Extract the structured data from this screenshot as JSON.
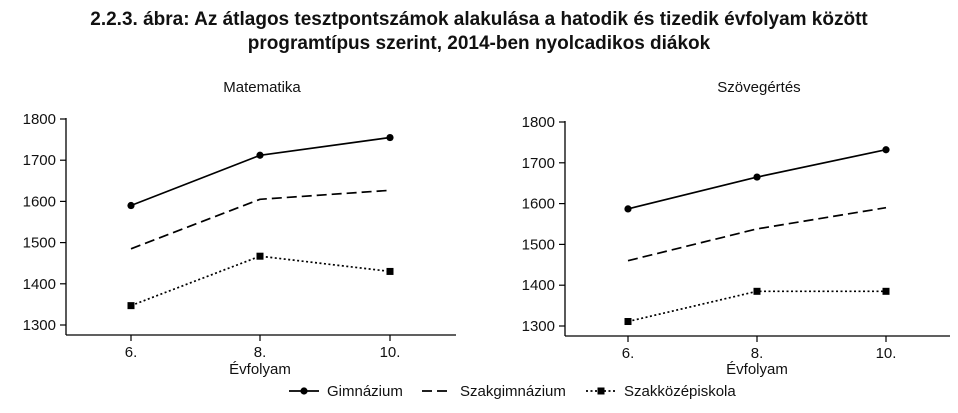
{
  "figure": {
    "title_line1": "2.2.3. ábra: Az átlagos tesztpontszámok alakulása a hatodik és tizedik évfolyam között",
    "title_line2": "programtípus szerint, 2014-ben nyolcadikos diákok"
  },
  "chart_data": [
    {
      "type": "line",
      "title": "Matematika",
      "xlabel": "Évfolyam",
      "ylabel": "",
      "categories": [
        "6.",
        "8.",
        "10."
      ],
      "ylim": [
        1300,
        1800
      ],
      "yticks": [
        1300,
        1400,
        1500,
        1600,
        1700,
        1800
      ],
      "grid": false,
      "legend_position": "bottom",
      "series": [
        {
          "name": "Gimnázium",
          "values": [
            1590,
            1712,
            1755
          ],
          "style": "solid",
          "marker": "circle"
        },
        {
          "name": "Szakgimnázium",
          "values": [
            1485,
            1605,
            1627
          ],
          "style": "dashed",
          "marker": "none"
        },
        {
          "name": "Szakközépiskola",
          "values": [
            1347,
            1467,
            1430
          ],
          "style": "dotted",
          "marker": "square"
        }
      ]
    },
    {
      "type": "line",
      "title": "Szövegértés",
      "xlabel": "Évfolyam",
      "ylabel": "",
      "categories": [
        "6.",
        "8.",
        "10."
      ],
      "ylim": [
        1300,
        1800
      ],
      "yticks": [
        1300,
        1400,
        1500,
        1600,
        1700,
        1800
      ],
      "grid": false,
      "legend_position": "bottom",
      "series": [
        {
          "name": "Gimnázium",
          "values": [
            1587,
            1665,
            1732
          ],
          "style": "solid",
          "marker": "circle"
        },
        {
          "name": "Szakgimnázium",
          "values": [
            1460,
            1538,
            1590
          ],
          "style": "dashed",
          "marker": "none"
        },
        {
          "name": "Szakközépiskola",
          "values": [
            1311,
            1385,
            1385
          ],
          "style": "dotted",
          "marker": "square"
        }
      ]
    }
  ],
  "legend": {
    "items": [
      {
        "label": "Gimnázium",
        "style": "solid",
        "marker": "circle"
      },
      {
        "label": "Szakgimnázium",
        "style": "dashed",
        "marker": "none"
      },
      {
        "label": "Szakközépiskola",
        "style": "dotted",
        "marker": "square"
      }
    ]
  },
  "colors": {
    "line": "#000000",
    "text": "#111111",
    "background": "#ffffff"
  }
}
